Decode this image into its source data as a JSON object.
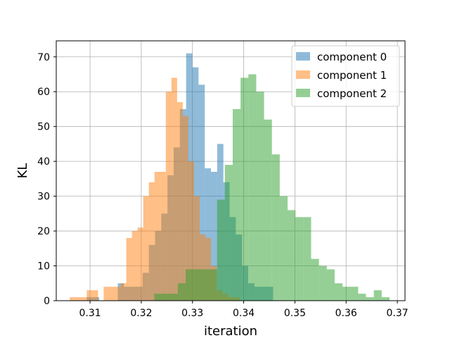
{
  "chart_data": {
    "type": "bar",
    "title": "",
    "xlabel": "iteration",
    "ylabel": "KL",
    "xlim": [
      0.3034,
      0.3715
    ],
    "ylim": [
      0,
      74.6
    ],
    "xticks": [
      0.31,
      0.32,
      0.33,
      0.34,
      0.35,
      0.36,
      0.37
    ],
    "xtick_labels": [
      "0.31",
      "0.32",
      "0.33",
      "0.34",
      "0.35",
      "0.36",
      "0.37"
    ],
    "yticks": [
      0,
      10,
      20,
      30,
      40,
      50,
      60,
      70
    ],
    "ytick_labels": [
      "0",
      "10",
      "20",
      "30",
      "40",
      "50",
      "60",
      "70"
    ],
    "grid": true,
    "legend_position": "top-right",
    "series": [
      {
        "name": "component 0",
        "color": "#1f77b4",
        "opacity": 0.5,
        "bin_start": 0.30935,
        "bin_width": 0.001213,
        "values": [
          1,
          1,
          0,
          0,
          0,
          5,
          4,
          4,
          4,
          8,
          16,
          20,
          25,
          36,
          44,
          55,
          71,
          67,
          62,
          38,
          37,
          45,
          34,
          24,
          19,
          10,
          5,
          4,
          4,
          4
        ]
      },
      {
        "name": "component 1",
        "color": "#ff7f0e",
        "opacity": 0.5,
        "bin_start": 0.306043,
        "bin_width": 0.001103,
        "values": [
          1,
          1,
          1,
          3,
          3,
          0,
          4,
          4,
          4,
          5,
          18,
          20,
          21,
          30,
          34,
          37,
          37,
          60,
          64,
          57,
          53,
          40,
          30,
          19,
          18,
          10,
          3,
          2,
          1,
          1
        ]
      },
      {
        "name": "component 2",
        "color": "#2ca02c",
        "opacity": 0.5,
        "bin_start": 0.322547,
        "bin_width": 0.001531,
        "values": [
          2,
          2,
          2,
          5,
          9,
          9,
          9,
          9,
          29,
          39,
          55,
          64,
          65,
          60,
          52,
          42,
          30,
          26,
          24,
          24,
          12,
          10,
          9,
          5,
          4,
          4,
          2,
          1,
          3,
          1
        ]
      }
    ]
  }
}
